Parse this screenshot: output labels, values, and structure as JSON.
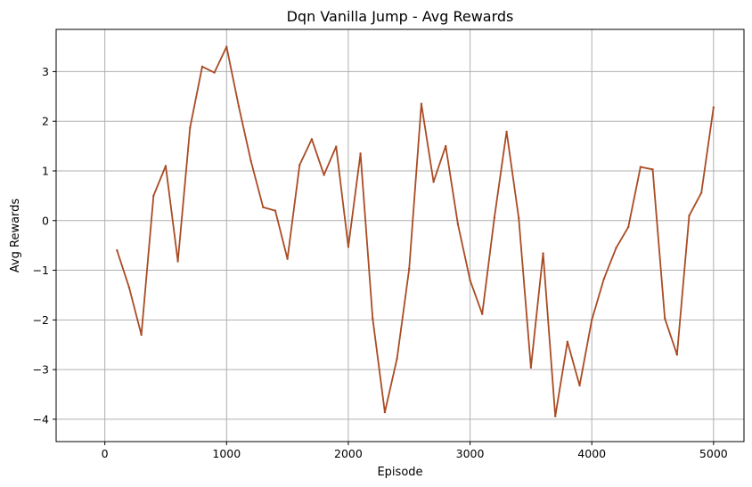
{
  "chart_data": {
    "type": "line",
    "title": "Dqn Vanilla Jump - Avg Rewards",
    "xlabel": "Episode",
    "ylabel": "Avg Rewards",
    "xlim": [
      -400,
      5250
    ],
    "ylim": [
      -4.45,
      3.85
    ],
    "xticks": [
      0,
      1000,
      2000,
      3000,
      4000,
      5000
    ],
    "yticks": [
      -4,
      -3,
      -2,
      -1,
      0,
      1,
      2,
      3
    ],
    "xtick_labels": [
      "0",
      "1000",
      "2000",
      "3000",
      "4000",
      "5000"
    ],
    "ytick_labels": [
      "−4",
      "−3",
      "−2",
      "−1",
      "0",
      "1",
      "2",
      "3"
    ],
    "grid": true,
    "series": [
      {
        "color": "#a94b24",
        "x": [
          100,
          200,
          300,
          400,
          500,
          600,
          700,
          800,
          900,
          1000,
          1100,
          1200,
          1300,
          1400,
          1500,
          1600,
          1700,
          1800,
          1900,
          2000,
          2100,
          2200,
          2300,
          2400,
          2500,
          2600,
          2700,
          2800,
          2900,
          3000,
          3100,
          3200,
          3300,
          3400,
          3500,
          3600,
          3700,
          3800,
          3900,
          4000,
          4100,
          4200,
          4300,
          4400,
          4500,
          4600,
          4700,
          4800,
          4900,
          5000
        ],
        "values": [
          -0.6,
          -1.35,
          -2.3,
          0.5,
          1.1,
          -0.82,
          1.87,
          3.1,
          2.98,
          3.5,
          2.3,
          1.2,
          0.27,
          0.2,
          -0.77,
          1.12,
          1.64,
          0.92,
          1.49,
          -0.53,
          1.35,
          -1.97,
          -3.86,
          -2.78,
          -0.97,
          2.35,
          0.78,
          1.5,
          -0.07,
          -1.2,
          -1.88,
          0.06,
          1.79,
          0.05,
          -2.96,
          -0.66,
          -3.94,
          -2.44,
          -3.32,
          -2.0,
          -1.17,
          -0.55,
          -0.13,
          1.08,
          1.03,
          -1.97,
          -2.7,
          0.1,
          0.56,
          2.28
        ]
      }
    ]
  }
}
